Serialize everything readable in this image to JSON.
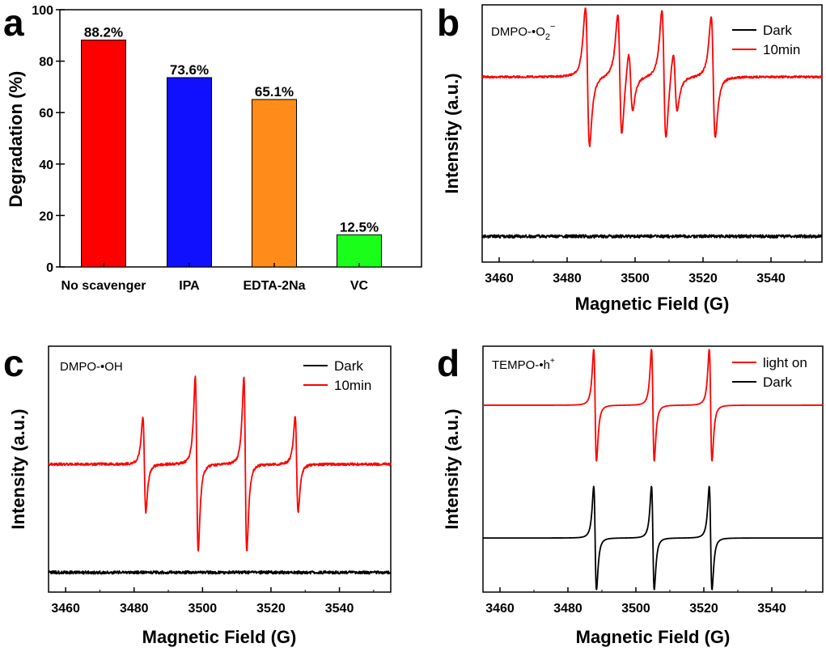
{
  "chart_data": [
    {
      "panel": "a",
      "type": "bar",
      "categories": [
        "No scavenger",
        "IPA",
        "EDTA-2Na",
        "VC"
      ],
      "values": [
        88.2,
        73.6,
        65.1,
        12.5
      ],
      "value_labels": [
        "88.2%",
        "73.6%",
        "65.1%",
        "12.5%"
      ],
      "colors": [
        "#ff0000",
        "#1010ff",
        "#ff8c1a",
        "#1aff1a"
      ],
      "ylabel": "Degradation (%)",
      "xlabel": "",
      "ylim": [
        0,
        100
      ],
      "yticks": [
        0,
        20,
        40,
        60,
        80,
        100
      ]
    },
    {
      "panel": "b",
      "type": "line",
      "probe": "DMPO-•O",
      "probe_sub": "2",
      "probe_sup": "−",
      "xlabel": "Magnetic Field (G)",
      "ylabel": "Intensity (a.u.)",
      "xlim": [
        3455,
        3555
      ],
      "xticks": [
        3460,
        3480,
        3500,
        3520,
        3540
      ],
      "legend": [
        "Dark",
        "10min"
      ],
      "legend_colors": [
        "#000000",
        "#ff0000"
      ],
      "series": [
        {
          "name": "Dark",
          "color": "#000000",
          "baseline": 0.1,
          "noise": 0.006,
          "peaks": []
        },
        {
          "name": "10min",
          "color": "#ff0000",
          "baseline": 0.72,
          "noise": 0.004,
          "peaks": [
            {
              "center": 3486,
              "amp": 0.32
            },
            {
              "center": 3495.5,
              "amp": 0.28
            },
            {
              "center": 3498.7,
              "amp": 0.14
            },
            {
              "center": 3508.5,
              "amp": 0.3
            },
            {
              "center": 3511.8,
              "amp": 0.14
            },
            {
              "center": 3523,
              "amp": 0.28
            }
          ]
        }
      ]
    },
    {
      "panel": "c",
      "type": "line",
      "probe": "DMPO-•OH",
      "xlabel": "Magnetic Field (G)",
      "ylabel": "Intensity (a.u.)",
      "xlim": [
        3455,
        3555
      ],
      "xticks": [
        3460,
        3480,
        3500,
        3520,
        3540
      ],
      "legend": [
        "Dark",
        "10min"
      ],
      "legend_colors": [
        "#000000",
        "#ff0000"
      ],
      "series": [
        {
          "name": "Dark",
          "color": "#000000",
          "baseline": 0.08,
          "noise": 0.006,
          "peaks": []
        },
        {
          "name": "10min",
          "color": "#ff0000",
          "baseline": 0.52,
          "noise": 0.005,
          "peaks": [
            {
              "center": 3483,
              "amp": 0.23
            },
            {
              "center": 3498.3,
              "amp": 0.42
            },
            {
              "center": 3512.5,
              "amp": 0.42
            },
            {
              "center": 3527.5,
              "amp": 0.23
            }
          ]
        }
      ]
    },
    {
      "panel": "d",
      "type": "line",
      "probe": "TEMPO-•h",
      "probe_sup": "+",
      "xlabel": "Magnetic Field (G)",
      "ylabel": "Intensity (a.u.)",
      "xlim": [
        3455,
        3555
      ],
      "xticks": [
        3460,
        3480,
        3500,
        3520,
        3540
      ],
      "legend": [
        "light on",
        "Dark"
      ],
      "legend_colors": [
        "#ff0000",
        "#000000"
      ],
      "series": [
        {
          "name": "light on",
          "color": "#ff0000",
          "baseline": 0.76,
          "noise": 0.0,
          "peaks": [
            {
              "center": 3488,
              "amp": 0.27
            },
            {
              "center": 3505,
              "amp": 0.27
            },
            {
              "center": 3522,
              "amp": 0.27
            }
          ]
        },
        {
          "name": "Dark",
          "color": "#000000",
          "baseline": 0.22,
          "noise": 0.0,
          "peaks": [
            {
              "center": 3488,
              "amp": 0.25
            },
            {
              "center": 3505,
              "amp": 0.25
            },
            {
              "center": 3522,
              "amp": 0.25
            }
          ]
        }
      ]
    }
  ]
}
